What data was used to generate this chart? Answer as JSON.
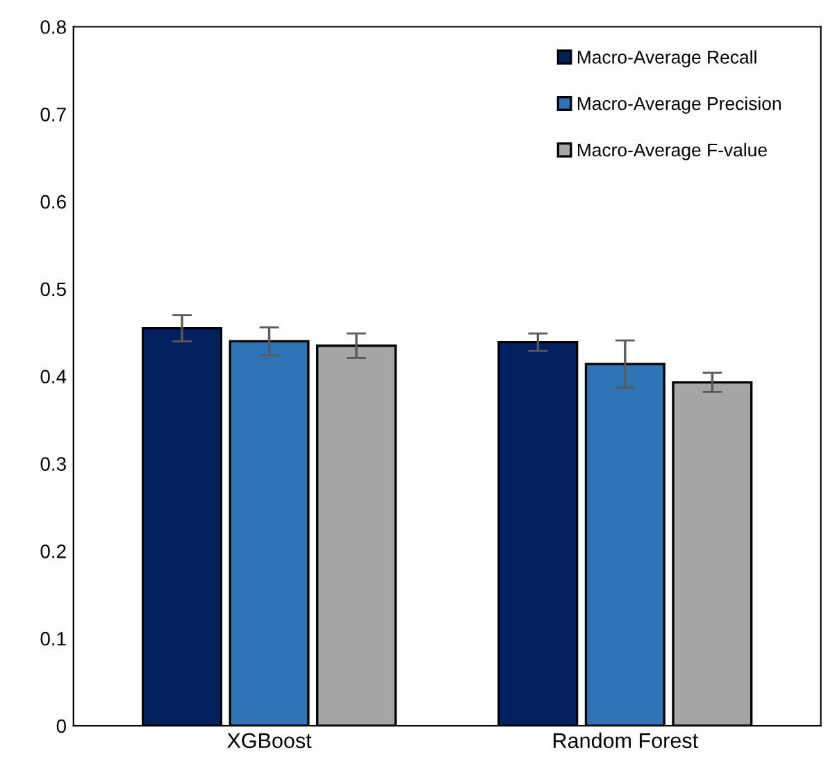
{
  "chart_data": {
    "type": "bar",
    "categories": [
      "XGBoost",
      "Random Forest"
    ],
    "series": [
      {
        "name": "Macro-Average Recall",
        "color": "#002060",
        "values": [
          0.455,
          0.439
        ],
        "errors": [
          0.015,
          0.01
        ]
      },
      {
        "name": "Macro-Average Precision",
        "color": "#2e75b6",
        "values": [
          0.44,
          0.414
        ],
        "errors": [
          0.016,
          0.027
        ]
      },
      {
        "name": "Macro-Average F-value",
        "color": "#a5a5a5",
        "values": [
          0.435,
          0.393
        ],
        "errors": [
          0.014,
          0.011
        ]
      }
    ],
    "ylim": [
      0,
      0.8
    ],
    "yticks": [
      {
        "value": 0,
        "label": "0"
      },
      0.1,
      0.2,
      0.3,
      0.4,
      0.5,
      0.6,
      0.7,
      0.8
    ],
    "grid": false,
    "legend": "top right"
  }
}
